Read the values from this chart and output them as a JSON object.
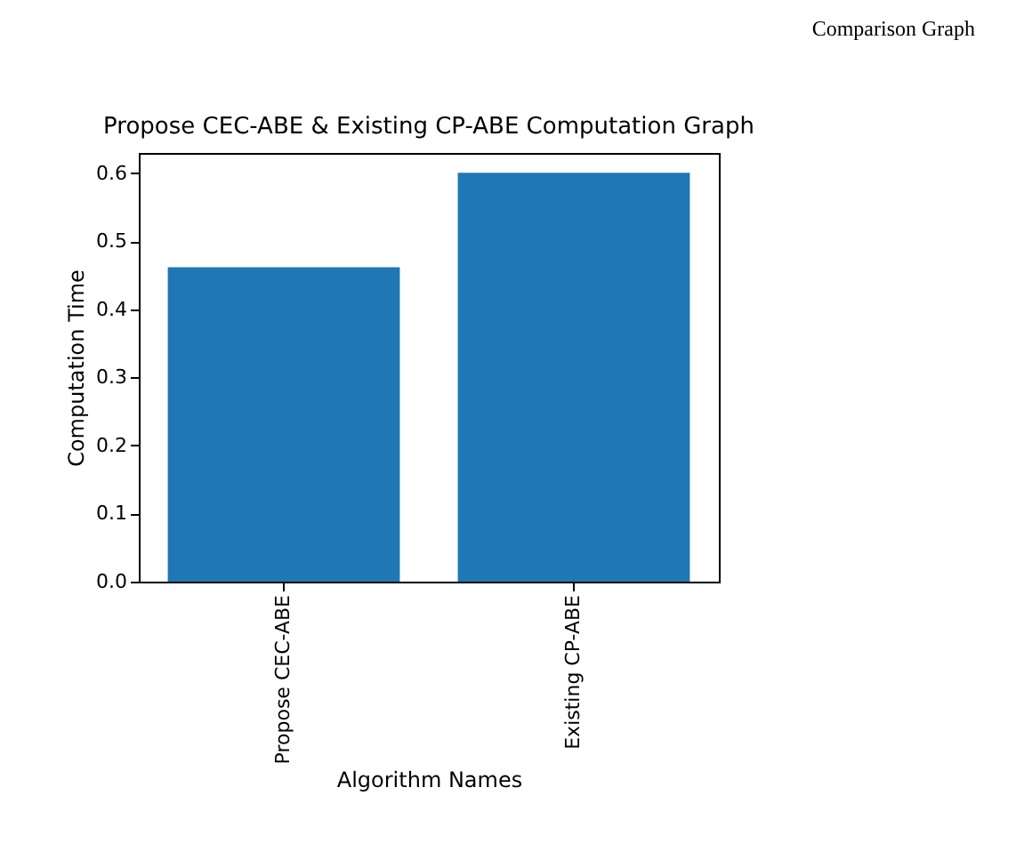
{
  "chart_data": {
    "type": "bar",
    "title": "Propose CEC-ABE & Existing CP-ABE Computation Graph",
    "xlabel": "Algorithm Names",
    "ylabel": "Computation Time",
    "categories": [
      "Propose CEC-ABE",
      "Existing CP-ABE"
    ],
    "values": [
      0.462,
      0.601
    ],
    "color": "#1f77b4",
    "ylim": [
      0,
      0.63
    ],
    "yticks": [
      {
        "value": 0,
        "label": "0.0"
      },
      0.1,
      0.2,
      0.3,
      0.4,
      0.5,
      0.6
    ],
    "grid": false,
    "annotations": [
      "Comparison Graph"
    ]
  }
}
